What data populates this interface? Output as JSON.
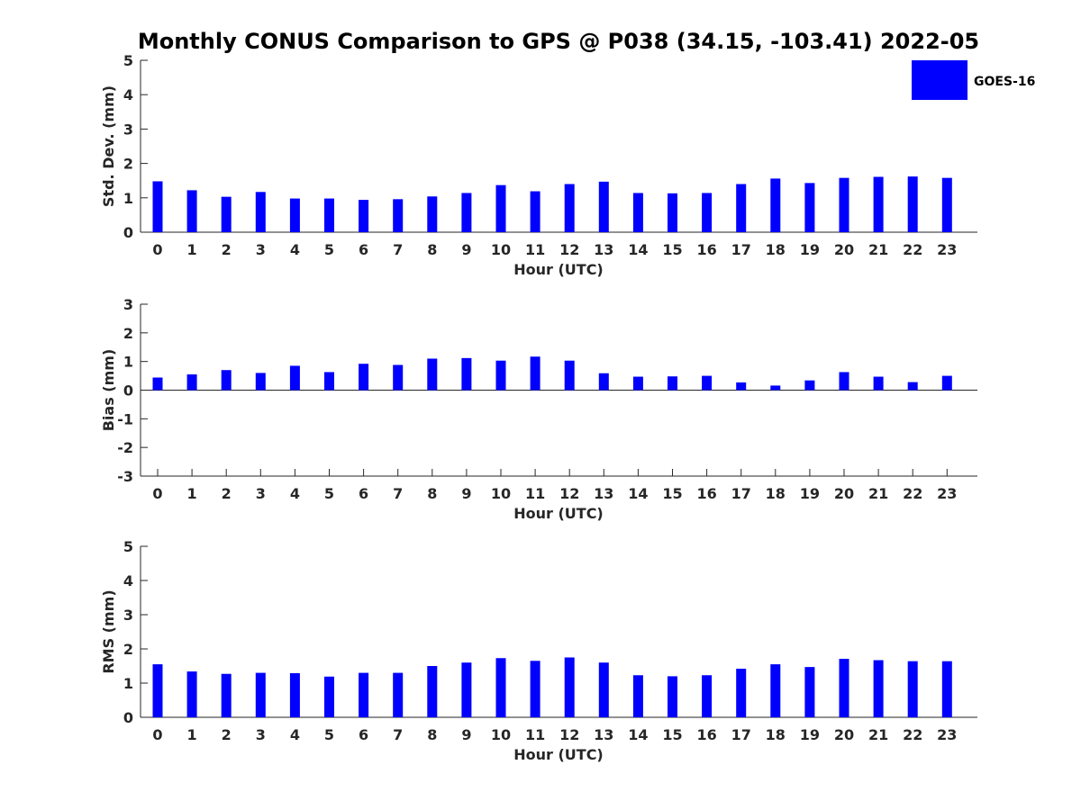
{
  "title": "Monthly CONUS Comparison to GPS @ P038 (34.15, -103.41) 2022-05",
  "legend": {
    "label": "GOES-16",
    "placement": "top-right"
  },
  "colors": {
    "bar": "#0000ff",
    "axis": "#262626"
  },
  "chart_data": [
    {
      "type": "bar",
      "xlabel": "Hour (UTC)",
      "ylabel": "Std. Dev. (mm)",
      "ylim": [
        0,
        5
      ],
      "yticks": [
        0,
        1,
        2,
        3,
        4,
        5
      ],
      "categories": [
        "0",
        "1",
        "2",
        "3",
        "4",
        "5",
        "6",
        "7",
        "8",
        "9",
        "10",
        "11",
        "12",
        "13",
        "14",
        "15",
        "16",
        "17",
        "18",
        "19",
        "20",
        "21",
        "22",
        "23"
      ],
      "series": [
        {
          "name": "GOES-16",
          "values": [
            1.48,
            1.22,
            1.03,
            1.17,
            0.98,
            0.98,
            0.94,
            0.96,
            1.04,
            1.14,
            1.37,
            1.19,
            1.4,
            1.47,
            1.14,
            1.13,
            1.14,
            1.4,
            1.56,
            1.43,
            1.58,
            1.61,
            1.62,
            1.58
          ]
        }
      ],
      "grid": false
    },
    {
      "type": "bar",
      "xlabel": "Hour (UTC)",
      "ylabel": "Bias (mm)",
      "ylim": [
        -3,
        3
      ],
      "yticks": [
        -3,
        -2,
        -1,
        0,
        1,
        2,
        3
      ],
      "categories": [
        "0",
        "1",
        "2",
        "3",
        "4",
        "5",
        "6",
        "7",
        "8",
        "9",
        "10",
        "11",
        "12",
        "13",
        "14",
        "15",
        "16",
        "17",
        "18",
        "19",
        "20",
        "21",
        "22",
        "23"
      ],
      "series": [
        {
          "name": "GOES-16",
          "values": [
            0.44,
            0.55,
            0.7,
            0.6,
            0.85,
            0.63,
            0.92,
            0.88,
            1.1,
            1.12,
            1.03,
            1.17,
            1.03,
            0.59,
            0.47,
            0.48,
            0.5,
            0.27,
            0.16,
            0.34,
            0.63,
            0.47,
            0.28,
            0.5
          ]
        }
      ],
      "grid": false
    },
    {
      "type": "bar",
      "xlabel": "Hour (UTC)",
      "ylabel": "RMS (mm)",
      "ylim": [
        0,
        5
      ],
      "yticks": [
        0,
        1,
        2,
        3,
        4,
        5
      ],
      "categories": [
        "0",
        "1",
        "2",
        "3",
        "4",
        "5",
        "6",
        "7",
        "8",
        "9",
        "10",
        "11",
        "12",
        "13",
        "14",
        "15",
        "16",
        "17",
        "18",
        "19",
        "20",
        "21",
        "22",
        "23"
      ],
      "series": [
        {
          "name": "GOES-16",
          "values": [
            1.55,
            1.34,
            1.27,
            1.3,
            1.29,
            1.19,
            1.3,
            1.3,
            1.5,
            1.6,
            1.73,
            1.65,
            1.75,
            1.6,
            1.23,
            1.2,
            1.23,
            1.42,
            1.55,
            1.47,
            1.71,
            1.67,
            1.64,
            1.64
          ]
        }
      ],
      "grid": false
    }
  ]
}
